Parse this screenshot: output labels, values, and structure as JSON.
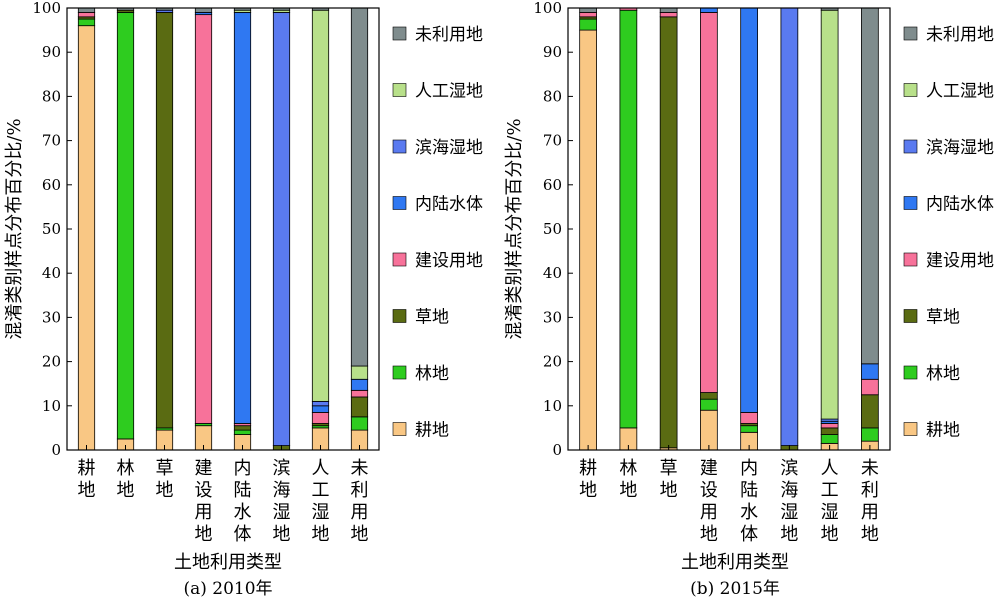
{
  "chart_data": [
    {
      "type": "bar",
      "stacked": true,
      "caption": "(a) 2010年",
      "xlabel": "土地利用类型",
      "ylabel": "混淆类别样点分布百分比/%",
      "ylim": [
        0,
        100
      ],
      "yticks": [
        0,
        10,
        20,
        30,
        40,
        50,
        60,
        70,
        80,
        90,
        100
      ],
      "categories": [
        "耕地",
        "林地",
        "草地",
        "建设用地",
        "内陆水体",
        "滨海湿地",
        "人工湿地",
        "未利用地"
      ],
      "legend_position": "right",
      "series": [
        {
          "name": "耕地",
          "color": "#f9c784",
          "values": [
            96,
            2.5,
            4.5,
            5.5,
            3.5,
            0,
            5,
            4.5
          ]
        },
        {
          "name": "林地",
          "color": "#2ecc1f",
          "values": [
            1.5,
            96.5,
            0.5,
            0.5,
            1,
            0,
            0.5,
            3
          ]
        },
        {
          "name": "草地",
          "color": "#5a6b12",
          "values": [
            0.5,
            0.5,
            94,
            0,
            1,
            1,
            0.5,
            4.5
          ]
        },
        {
          "name": "建设用地",
          "color": "#f7729a",
          "values": [
            1,
            0,
            0,
            92.5,
            0.5,
            0,
            2.5,
            1.5
          ]
        },
        {
          "name": "内陆水体",
          "color": "#2f78f2",
          "values": [
            0,
            0,
            0,
            0.5,
            93,
            0,
            1.5,
            2.5
          ]
        },
        {
          "name": "滨海湿地",
          "color": "#5a7af0",
          "values": [
            0,
            0,
            0.5,
            0,
            0,
            98,
            1,
            0
          ]
        },
        {
          "name": "人工湿地",
          "color": "#b8e08a",
          "values": [
            0,
            0,
            0,
            0,
            0.5,
            0.5,
            88.5,
            3
          ]
        },
        {
          "name": "未利用地",
          "color": "#7f8c8d",
          "values": [
            1,
            0.5,
            0.5,
            1,
            0.5,
            0.5,
            0.5,
            81
          ]
        }
      ]
    },
    {
      "type": "bar",
      "stacked": true,
      "caption": "(b) 2015年",
      "xlabel": "土地利用类型",
      "ylabel": "混淆类别样点分布百分比/%",
      "ylim": [
        0,
        100
      ],
      "yticks": [
        0,
        10,
        20,
        30,
        40,
        50,
        60,
        70,
        80,
        90,
        100
      ],
      "categories": [
        "耕地",
        "林地",
        "草地",
        "建设用地",
        "内陆水体",
        "滨海湿地",
        "人工湿地",
        "未利用地"
      ],
      "legend_position": "right",
      "series": [
        {
          "name": "耕地",
          "color": "#f9c784",
          "values": [
            95,
            5,
            0.5,
            9,
            4,
            0,
            1.5,
            2
          ]
        },
        {
          "name": "林地",
          "color": "#2ecc1f",
          "values": [
            2.5,
            94.5,
            0,
            2.5,
            1.5,
            0,
            2,
            3
          ]
        },
        {
          "name": "草地",
          "color": "#5a6b12",
          "values": [
            0.5,
            0,
            97.5,
            1.5,
            0.5,
            1,
            1.5,
            7.5
          ]
        },
        {
          "name": "建设用地",
          "color": "#f7729a",
          "values": [
            1,
            0.5,
            1,
            86,
            2.5,
            0,
            1,
            3.5
          ]
        },
        {
          "name": "内陆水体",
          "color": "#2f78f2",
          "values": [
            0,
            0,
            0,
            1,
            91.5,
            0,
            0.5,
            3.5
          ]
        },
        {
          "name": "滨海湿地",
          "color": "#5a7af0",
          "values": [
            0,
            0,
            0,
            0,
            0,
            99,
            0.5,
            0
          ]
        },
        {
          "name": "人工湿地",
          "color": "#b8e08a",
          "values": [
            0,
            0,
            0,
            0,
            0,
            0,
            92.5,
            0
          ]
        },
        {
          "name": "未利用地",
          "color": "#7f8c8d",
          "values": [
            1,
            0,
            1,
            0,
            0,
            0,
            0.5,
            80.5
          ]
        }
      ]
    }
  ]
}
